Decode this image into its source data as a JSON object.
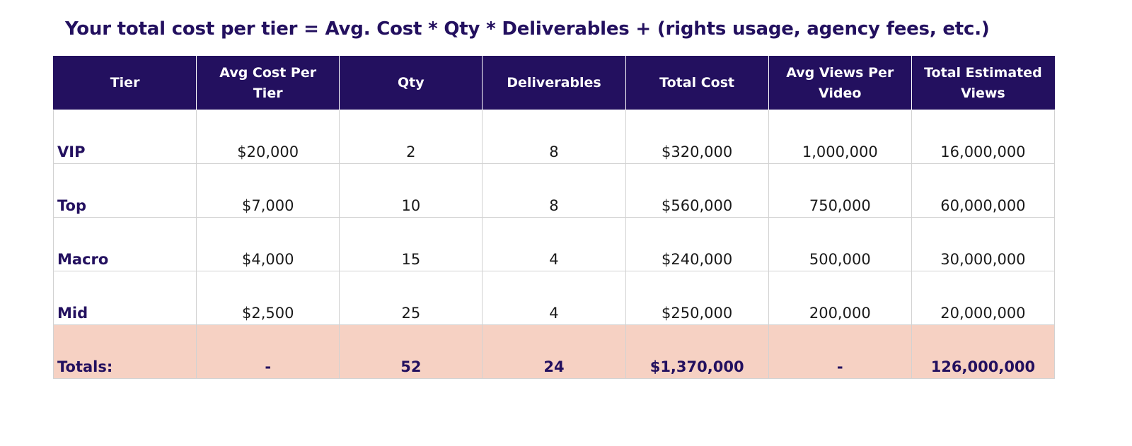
{
  "title": "Your total cost per tier = Avg. Cost * Qty * Deliverables +  (rights usage, agency fees, etc.)",
  "table": {
    "headers": [
      "Tier",
      "Avg Cost Per Tier",
      "Qty",
      "Deliverables",
      "Total Cost",
      "Avg Views Per Video",
      "Total Estimated Views"
    ],
    "rows": [
      [
        "VIP",
        "$20,000",
        "2",
        "8",
        "$320,000",
        "1,000,000",
        "16,000,000"
      ],
      [
        "Top",
        "$7,000",
        "10",
        "8",
        "$560,000",
        "750,000",
        "60,000,000"
      ],
      [
        "Macro",
        "$4,000",
        "15",
        "4",
        "$240,000",
        "500,000",
        "30,000,000"
      ],
      [
        "Mid",
        "$2,500",
        "25",
        "4",
        "$250,000",
        "200,000",
        "20,000,000"
      ]
    ],
    "totals": [
      "Totals:",
      "-",
      "52",
      "24",
      "$1,370,000",
      "-",
      "126,000,000"
    ]
  },
  "colors": {
    "header_bg": "#23105f",
    "header_text": "#ffffff",
    "totals_bg": "#f6d1c3",
    "accent_text": "#23105f"
  }
}
